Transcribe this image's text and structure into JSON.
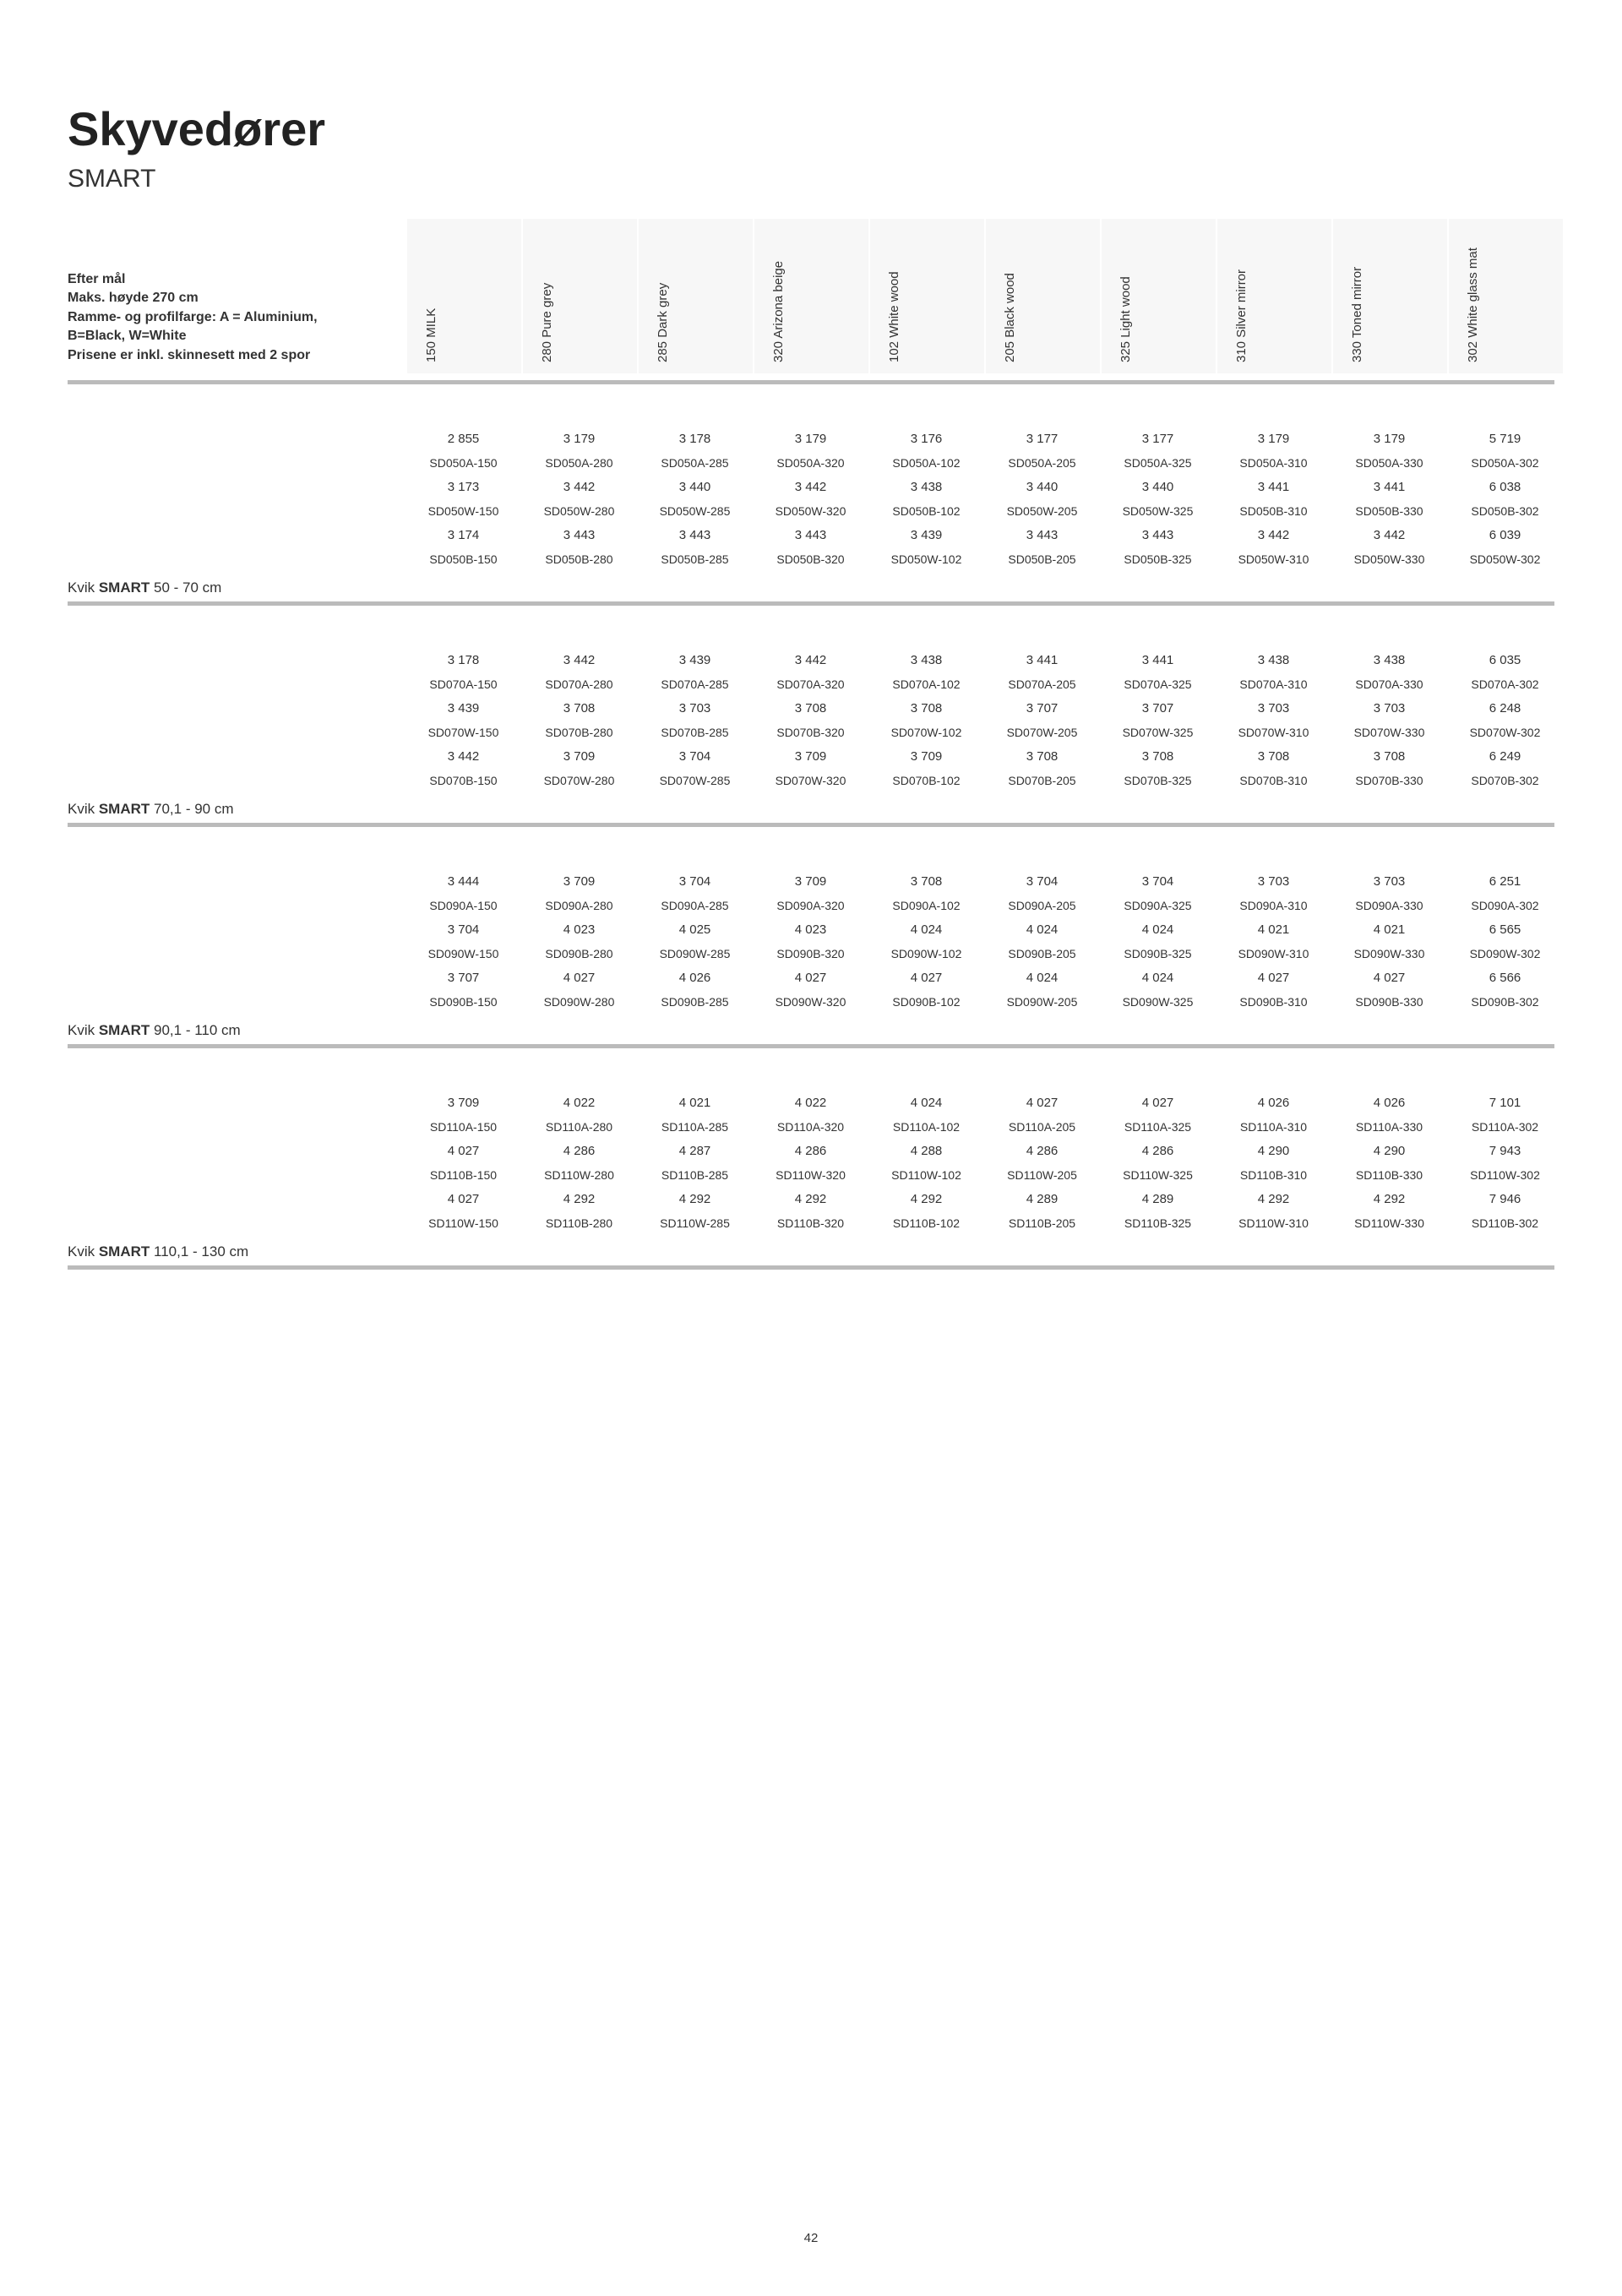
{
  "title": "Skyvedører",
  "subtitle": "SMART",
  "notes": [
    "Efter mål",
    "Maks. høyde 270 cm",
    "Ramme- og profilfarge: A = Aluminium, B=Black, W=White",
    "Prisene er inkl. skinnesett med 2 spor"
  ],
  "columns": [
    "150 MILK",
    "280 Pure grey",
    "285 Dark grey",
    "320 Arizona beige",
    "102 White wood",
    "205 Black wood",
    "325 Light wood",
    "310 Silver mirror",
    "330 Toned mirror",
    "302 White glass mat"
  ],
  "sections": [
    {
      "label_prefix": "Kvik ",
      "label_bold": "SMART",
      "label_suffix": " 50 - 70 cm",
      "rows": [
        {
          "prices": [
            "2 855",
            "3 179",
            "3 178",
            "3 179",
            "3 176",
            "3 177",
            "3 177",
            "3 179",
            "3 179",
            "5 719"
          ],
          "skus": [
            "SD050A-150",
            "SD050A-280",
            "SD050A-285",
            "SD050A-320",
            "SD050A-102",
            "SD050A-205",
            "SD050A-325",
            "SD050A-310",
            "SD050A-330",
            "SD050A-302"
          ]
        },
        {
          "prices": [
            "3 173",
            "3 442",
            "3 440",
            "3 442",
            "3 438",
            "3 440",
            "3 440",
            "3 441",
            "3 441",
            "6 038"
          ],
          "skus": [
            "SD050W-150",
            "SD050W-280",
            "SD050W-285",
            "SD050W-320",
            "SD050B-102",
            "SD050W-205",
            "SD050W-325",
            "SD050B-310",
            "SD050B-330",
            "SD050B-302"
          ]
        },
        {
          "prices": [
            "3 174",
            "3 443",
            "3 443",
            "3 443",
            "3 439",
            "3 443",
            "3 443",
            "3 442",
            "3 442",
            "6 039"
          ],
          "skus": [
            "SD050B-150",
            "SD050B-280",
            "SD050B-285",
            "SD050B-320",
            "SD050W-102",
            "SD050B-205",
            "SD050B-325",
            "SD050W-310",
            "SD050W-330",
            "SD050W-302"
          ]
        }
      ]
    },
    {
      "label_prefix": "Kvik ",
      "label_bold": "SMART",
      "label_suffix": " 70,1 - 90 cm",
      "rows": [
        {
          "prices": [
            "3 178",
            "3 442",
            "3 439",
            "3 442",
            "3 438",
            "3 441",
            "3 441",
            "3 438",
            "3 438",
            "6 035"
          ],
          "skus": [
            "SD070A-150",
            "SD070A-280",
            "SD070A-285",
            "SD070A-320",
            "SD070A-102",
            "SD070A-205",
            "SD070A-325",
            "SD070A-310",
            "SD070A-330",
            "SD070A-302"
          ]
        },
        {
          "prices": [
            "3 439",
            "3 708",
            "3 703",
            "3 708",
            "3 708",
            "3 707",
            "3 707",
            "3 703",
            "3 703",
            "6 248"
          ],
          "skus": [
            "SD070W-150",
            "SD070B-280",
            "SD070B-285",
            "SD070B-320",
            "SD070W-102",
            "SD070W-205",
            "SD070W-325",
            "SD070W-310",
            "SD070W-330",
            "SD070W-302"
          ]
        },
        {
          "prices": [
            "3 442",
            "3 709",
            "3 704",
            "3 709",
            "3 709",
            "3 708",
            "3 708",
            "3 708",
            "3 708",
            "6 249"
          ],
          "skus": [
            "SD070B-150",
            "SD070W-280",
            "SD070W-285",
            "SD070W-320",
            "SD070B-102",
            "SD070B-205",
            "SD070B-325",
            "SD070B-310",
            "SD070B-330",
            "SD070B-302"
          ]
        }
      ]
    },
    {
      "label_prefix": "Kvik ",
      "label_bold": "SMART",
      "label_suffix": " 90,1 - 110 cm",
      "rows": [
        {
          "prices": [
            "3 444",
            "3 709",
            "3 704",
            "3 709",
            "3 708",
            "3 704",
            "3 704",
            "3 703",
            "3 703",
            "6 251"
          ],
          "skus": [
            "SD090A-150",
            "SD090A-280",
            "SD090A-285",
            "SD090A-320",
            "SD090A-102",
            "SD090A-205",
            "SD090A-325",
            "SD090A-310",
            "SD090A-330",
            "SD090A-302"
          ]
        },
        {
          "prices": [
            "3 704",
            "4 023",
            "4 025",
            "4 023",
            "4 024",
            "4 024",
            "4 024",
            "4 021",
            "4 021",
            "6 565"
          ],
          "skus": [
            "SD090W-150",
            "SD090B-280",
            "SD090W-285",
            "SD090B-320",
            "SD090W-102",
            "SD090B-205",
            "SD090B-325",
            "SD090W-310",
            "SD090W-330",
            "SD090W-302"
          ]
        },
        {
          "prices": [
            "3 707",
            "4 027",
            "4 026",
            "4 027",
            "4 027",
            "4 024",
            "4 024",
            "4 027",
            "4 027",
            "6 566"
          ],
          "skus": [
            "SD090B-150",
            "SD090W-280",
            "SD090B-285",
            "SD090W-320",
            "SD090B-102",
            "SD090W-205",
            "SD090W-325",
            "SD090B-310",
            "SD090B-330",
            "SD090B-302"
          ]
        }
      ]
    },
    {
      "label_prefix": "Kvik ",
      "label_bold": "SMART",
      "label_suffix": " 110,1 - 130 cm",
      "rows": [
        {
          "prices": [
            "3 709",
            "4 022",
            "4 021",
            "4 022",
            "4 024",
            "4 027",
            "4 027",
            "4 026",
            "4 026",
            "7 101"
          ],
          "skus": [
            "SD110A-150",
            "SD110A-280",
            "SD110A-285",
            "SD110A-320",
            "SD110A-102",
            "SD110A-205",
            "SD110A-325",
            "SD110A-310",
            "SD110A-330",
            "SD110A-302"
          ]
        },
        {
          "prices": [
            "4 027",
            "4 286",
            "4 287",
            "4 286",
            "4 288",
            "4 286",
            "4 286",
            "4 290",
            "4 290",
            "7 943"
          ],
          "skus": [
            "SD110B-150",
            "SD110W-280",
            "SD110B-285",
            "SD110W-320",
            "SD110W-102",
            "SD110W-205",
            "SD110W-325",
            "SD110B-310",
            "SD110B-330",
            "SD110W-302"
          ]
        },
        {
          "prices": [
            "4 027",
            "4 292",
            "4 292",
            "4 292",
            "4 292",
            "4 289",
            "4 289",
            "4 292",
            "4 292",
            "7 946"
          ],
          "skus": [
            "SD110W-150",
            "SD110B-280",
            "SD110W-285",
            "SD110B-320",
            "SD110B-102",
            "SD110B-205",
            "SD110B-325",
            "SD110W-310",
            "SD110W-330",
            "SD110B-302"
          ]
        }
      ]
    }
  ],
  "page_number": "42"
}
